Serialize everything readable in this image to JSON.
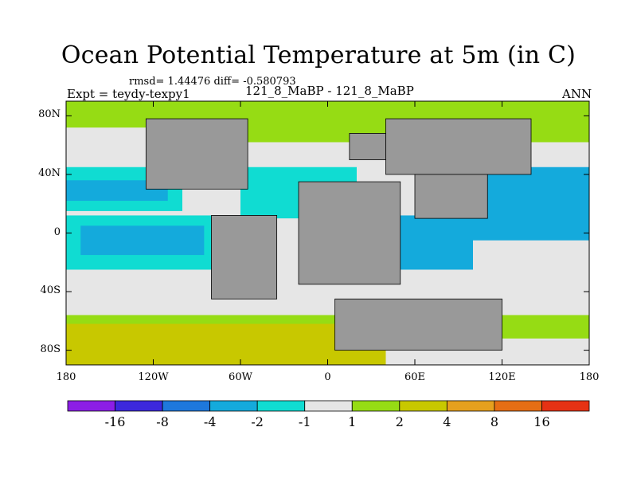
{
  "header": {
    "title": "Ocean Potential Temperature at 5m (in C)",
    "stats": "rmsd= 1.44476 diff= -0.580793",
    "experiment": "Expt = teydy-texpy1",
    "comparison": "121_8_MaBP - 121_8_MaBP",
    "season": "ANN"
  },
  "chart_data": {
    "type": "heatmap",
    "title": "Ocean Potential Temperature at 5m (in C)",
    "variable": "temperature difference",
    "units": "C",
    "xlabel": "",
    "ylabel": "",
    "xlim": [
      -180,
      180
    ],
    "ylim": [
      -90,
      90
    ],
    "x_ticks": [
      {
        "value": -180,
        "label": "180"
      },
      {
        "value": -120,
        "label": "120W"
      },
      {
        "value": -60,
        "label": "60W"
      },
      {
        "value": 0,
        "label": "0"
      },
      {
        "value": 60,
        "label": "60E"
      },
      {
        "value": 120,
        "label": "120E"
      },
      {
        "value": 180,
        "label": "180"
      }
    ],
    "y_ticks": [
      {
        "value": 80,
        "label": "80N"
      },
      {
        "value": 40,
        "label": "40N"
      },
      {
        "value": 0,
        "label": "0"
      },
      {
        "value": -40,
        "label": "40S"
      },
      {
        "value": -80,
        "label": "80S"
      }
    ],
    "colorbar": {
      "bins": [
        {
          "range": "< -16",
          "color": "#8c1ee6"
        },
        {
          "range": "-16 to -8",
          "color": "#3c28dc"
        },
        {
          "range": "-8 to -4",
          "color": "#1e78dc"
        },
        {
          "range": "-4 to -2",
          "color": "#14aadc"
        },
        {
          "range": "-2 to -1",
          "color": "#10dcd2"
        },
        {
          "range": "-1 to 1",
          "color": "#e6e6e6"
        },
        {
          "range": "1 to 2",
          "color": "#96dc14"
        },
        {
          "range": "2 to 4",
          "color": "#c8c800"
        },
        {
          "range": "4 to 8",
          "color": "#e6a01e"
        },
        {
          "range": "8 to 16",
          "color": "#e66e14"
        },
        {
          "range": "> 16",
          "color": "#e63214"
        }
      ],
      "boundary_labels": [
        "-16",
        "-8",
        "-4",
        "-2",
        "-1",
        "1",
        "2",
        "4",
        "8",
        "16"
      ]
    },
    "land_color": "#999999",
    "regions": [
      {
        "name": "arctic-band",
        "color": "#96dc14",
        "lon": [
          -180,
          180
        ],
        "lat": [
          62,
          90
        ]
      },
      {
        "name": "north-pacific-white",
        "color": "#e6e6e6",
        "lon": [
          -180,
          -90
        ],
        "lat": [
          52,
          72
        ]
      },
      {
        "name": "north-pacific-cyan",
        "color": "#10dcd2",
        "lon": [
          -180,
          -100
        ],
        "lat": [
          15,
          45
        ]
      },
      {
        "name": "north-pacific-blue",
        "color": "#14aadc",
        "lon": [
          -180,
          -110
        ],
        "lat": [
          22,
          36
        ]
      },
      {
        "name": "equatorial-pacific-cyan",
        "color": "#10dcd2",
        "lon": [
          -180,
          -75
        ],
        "lat": [
          -25,
          12
        ]
      },
      {
        "name": "equatorial-pacific-blue",
        "color": "#14aadc",
        "lon": [
          -170,
          -85
        ],
        "lat": [
          -15,
          5
        ]
      },
      {
        "name": "atlantic-cyan",
        "color": "#10dcd2",
        "lon": [
          -60,
          20
        ],
        "lat": [
          10,
          45
        ]
      },
      {
        "name": "indian-blue",
        "color": "#14aadc",
        "lon": [
          40,
          100
        ],
        "lat": [
          -25,
          12
        ]
      },
      {
        "name": "west-pacific-blue",
        "color": "#14aadc",
        "lon": [
          100,
          180
        ],
        "lat": [
          -5,
          45
        ]
      },
      {
        "name": "southern-white",
        "color": "#e6e6e6",
        "lon": [
          -180,
          180
        ],
        "lat": [
          -58,
          -28
        ]
      },
      {
        "name": "southern-green",
        "color": "#96dc14",
        "lon": [
          -180,
          180
        ],
        "lat": [
          -72,
          -56
        ]
      },
      {
        "name": "antarctic-yellow",
        "color": "#c8c800",
        "lon": [
          -180,
          40
        ],
        "lat": [
          -90,
          -62
        ]
      }
    ],
    "continents": [
      {
        "name": "north-america",
        "lon": [
          -125,
          -55
        ],
        "lat": [
          30,
          78
        ]
      },
      {
        "name": "south-america",
        "lon": [
          -80,
          -35
        ],
        "lat": [
          -45,
          12
        ]
      },
      {
        "name": "eurasia",
        "lon": [
          40,
          140
        ],
        "lat": [
          40,
          78
        ]
      },
      {
        "name": "africa",
        "lon": [
          -20,
          50
        ],
        "lat": [
          -35,
          35
        ]
      },
      {
        "name": "india-asia",
        "lon": [
          60,
          110
        ],
        "lat": [
          10,
          40
        ]
      },
      {
        "name": "australia-antarctica",
        "lon": [
          5,
          120
        ],
        "lat": [
          -80,
          -45
        ]
      },
      {
        "name": "greenland",
        "lon": [
          15,
          40
        ],
        "lat": [
          50,
          68
        ]
      }
    ]
  }
}
